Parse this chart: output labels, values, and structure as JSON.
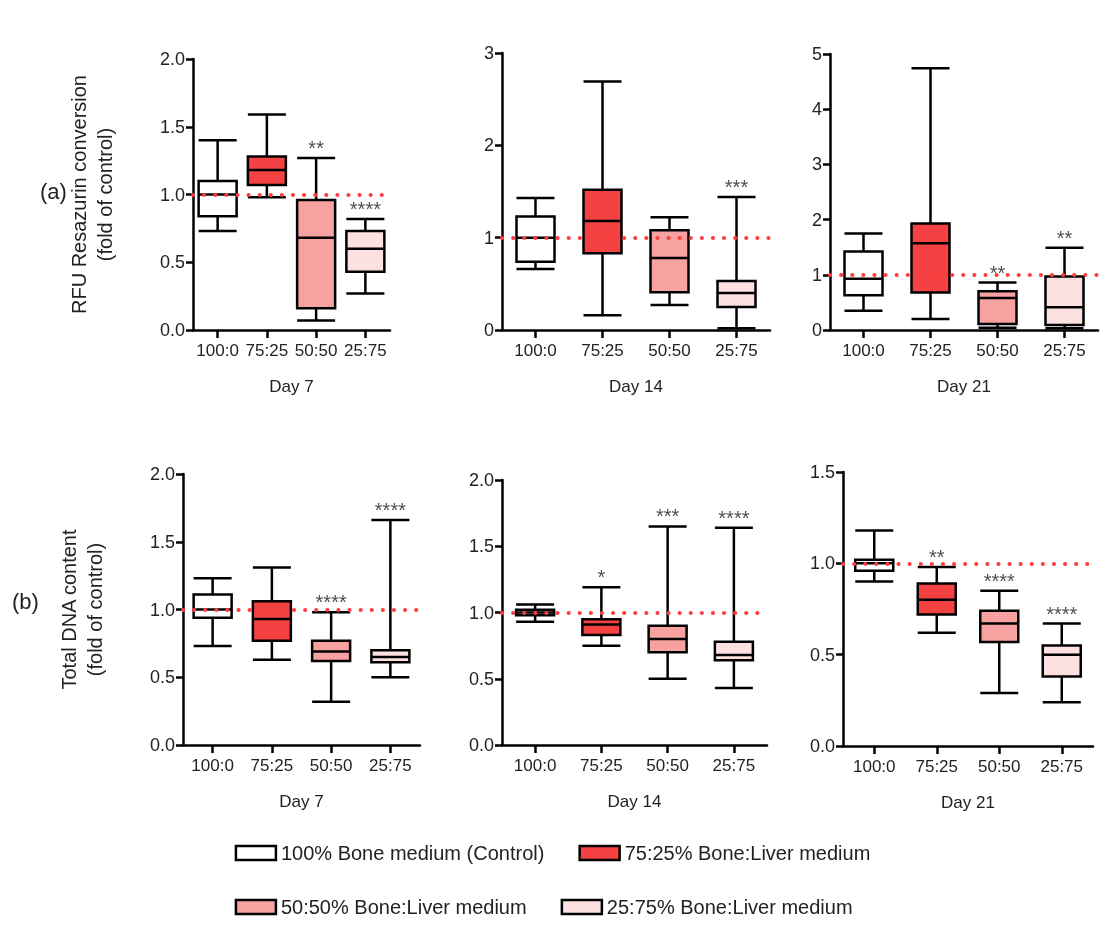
{
  "chart_data": [
    {
      "type": "box",
      "categories": [
        "100:0",
        "75:25",
        "50:50",
        "25:75"
      ],
      "xlabel": "Day 7",
      "ylabel": "RFU Resazurin conversion\n(fold of control)",
      "ylim": [
        0,
        2
      ],
      "yticks": [
        {
          "value": 0,
          "label": "0.0"
        },
        0.5,
        {
          "value": 1,
          "label": "1.0"
        },
        1.5,
        {
          "value": 2,
          "label": "2.0"
        }
      ],
      "series": [
        {
          "color": "#ffffff",
          "boxes": [
            {
              "low": 0.73,
              "q1": 0.84,
              "median": 1.0,
              "q3": 1.1,
              "high": 1.4
            },
            null,
            null,
            null
          ]
        },
        {
          "color": "#f44141",
          "boxes": [
            null,
            {
              "low": 0.98,
              "q1": 1.07,
              "median": 1.18,
              "q3": 1.28,
              "high": 1.59
            },
            null,
            null
          ]
        },
        {
          "color": "#f7a1a1",
          "boxes": [
            null,
            null,
            {
              "low": 0.07,
              "q1": 0.16,
              "median": 0.68,
              "q3": 0.96,
              "high": 1.27
            },
            null
          ]
        },
        {
          "color": "#fde0e0",
          "boxes": [
            null,
            null,
            null,
            {
              "low": 0.27,
              "q1": 0.43,
              "median": 0.6,
              "q3": 0.73,
              "high": 0.82
            }
          ]
        }
      ],
      "ref_lines": [
        {
          "axis": "y",
          "value": 1,
          "color": "#ff3b3b",
          "line_style": "dotted"
        }
      ],
      "annotations": [
        "(a)",
        {
          "text": "**",
          "x": "50:50",
          "y": 1.27
        },
        {
          "text": "****",
          "x": "25:75",
          "y": 0.82
        }
      ]
    },
    {
      "type": "box",
      "categories": [
        "100:0",
        "75:25",
        "50:50",
        "25:75"
      ],
      "xlabel": "Day 14",
      "ylim": [
        0,
        3
      ],
      "yticks": [
        0,
        1,
        2,
        3
      ],
      "series": [
        {
          "color": "#ffffff",
          "boxes": [
            {
              "low": 0.66,
              "q1": 0.74,
              "median": 1.0,
              "q3": 1.23,
              "high": 1.43
            },
            null,
            null,
            null
          ]
        },
        {
          "color": "#f44141",
          "boxes": [
            null,
            {
              "low": 0.16,
              "q1": 0.83,
              "median": 1.18,
              "q3": 1.52,
              "high": 2.69
            },
            null,
            null
          ]
        },
        {
          "color": "#f7a1a1",
          "boxes": [
            null,
            null,
            {
              "low": 0.27,
              "q1": 0.41,
              "median": 0.78,
              "q3": 1.08,
              "high": 1.22
            },
            null
          ]
        },
        {
          "color": "#fde0e0",
          "boxes": [
            null,
            null,
            null,
            {
              "low": 0.02,
              "q1": 0.25,
              "median": 0.4,
              "q3": 0.53,
              "high": 1.44
            }
          ]
        }
      ],
      "ref_lines": [
        {
          "axis": "y",
          "value": 1,
          "color": "#ff3b3b",
          "line_style": "dotted"
        }
      ],
      "annotations": [
        {
          "text": "***",
          "x": "25:75",
          "y": 1.44
        }
      ]
    },
    {
      "type": "box",
      "categories": [
        "100:0",
        "75:25",
        "50:50",
        "25:75"
      ],
      "xlabel": "Day 21",
      "ylim": [
        0,
        5
      ],
      "yticks": [
        0,
        1,
        2,
        3,
        4,
        5
      ],
      "series": [
        {
          "color": "#ffffff",
          "boxes": [
            {
              "low": 0.35,
              "q1": 0.63,
              "median": 0.93,
              "q3": 1.42,
              "high": 1.75
            },
            null,
            null,
            null
          ]
        },
        {
          "color": "#f44141",
          "boxes": [
            null,
            {
              "low": 0.2,
              "q1": 0.68,
              "median": 1.57,
              "q3": 1.93,
              "high": 4.74
            },
            null,
            null
          ]
        },
        {
          "color": "#f7a1a1",
          "boxes": [
            null,
            null,
            {
              "low": 0.04,
              "q1": 0.11,
              "median": 0.58,
              "q3": 0.7,
              "high": 0.86
            },
            null
          ]
        },
        {
          "color": "#fde0e0",
          "boxes": [
            null,
            null,
            null,
            {
              "low": 0.03,
              "q1": 0.09,
              "median": 0.41,
              "q3": 0.97,
              "high": 1.49
            }
          ]
        }
      ],
      "ref_lines": [
        {
          "axis": "y",
          "value": 1,
          "color": "#ff3b3b",
          "line_style": "dotted"
        }
      ],
      "annotations": [
        {
          "text": "**",
          "x": "50:50",
          "y": 0.86
        },
        {
          "text": "**",
          "x": "25:75",
          "y": 1.49
        }
      ]
    },
    {
      "type": "box",
      "categories": [
        "100:0",
        "75:25",
        "50:50",
        "25:75"
      ],
      "xlabel": "Day 7",
      "ylabel": "Total DNA content\n(fold of control)",
      "ylim": [
        0,
        2
      ],
      "yticks": [
        {
          "value": 0,
          "label": "0.0"
        },
        0.5,
        {
          "value": 1,
          "label": "1.0"
        },
        1.5,
        {
          "value": 2,
          "label": "2.0"
        }
      ],
      "series": [
        {
          "color": "#ffffff",
          "boxes": [
            {
              "low": 0.73,
              "q1": 0.94,
              "median": 1.0,
              "q3": 1.11,
              "high": 1.23
            },
            null,
            null,
            null
          ]
        },
        {
          "color": "#f44141",
          "boxes": [
            null,
            {
              "low": 0.63,
              "q1": 0.77,
              "median": 0.93,
              "q3": 1.06,
              "high": 1.31
            },
            null,
            null
          ]
        },
        {
          "color": "#f7a1a1",
          "boxes": [
            null,
            null,
            {
              "low": 0.32,
              "q1": 0.62,
              "median": 0.69,
              "q3": 0.77,
              "high": 0.98
            },
            null
          ]
        },
        {
          "color": "#fde0e0",
          "boxes": [
            null,
            null,
            null,
            {
              "low": 0.5,
              "q1": 0.61,
              "median": 0.65,
              "q3": 0.7,
              "high": 1.66
            }
          ]
        }
      ],
      "ref_lines": [
        {
          "axis": "y",
          "value": 1,
          "color": "#ff3b3b",
          "line_style": "dotted"
        }
      ],
      "annotations": [
        "(b)",
        {
          "text": "****",
          "x": "50:50",
          "y": 0.98
        },
        {
          "text": "****",
          "x": "25:75",
          "y": 1.66
        }
      ]
    },
    {
      "type": "box",
      "categories": [
        "100:0",
        "75:25",
        "50:50",
        "25:75"
      ],
      "xlabel": "Day 14",
      "ylim": [
        0,
        2
      ],
      "yticks": [
        {
          "value": 0,
          "label": "0.0"
        },
        0.5,
        {
          "value": 1,
          "label": "1.0"
        },
        1.5,
        {
          "value": 2,
          "label": "2.0"
        }
      ],
      "legend": "bottom",
      "series": [
        {
          "name": "100% Bone medium (Control)",
          "color": "#ffffff",
          "boxes": [
            {
              "low": 0.93,
              "q1": 0.98,
              "median": 1.0,
              "q3": 1.02,
              "high": 1.06
            },
            null,
            null,
            null
          ]
        },
        {
          "name": "75:25% Bone:Liver medium",
          "color": "#f44141",
          "boxes": [
            null,
            {
              "low": 0.75,
              "q1": 0.83,
              "median": 0.91,
              "q3": 0.95,
              "high": 1.19
            },
            null,
            null
          ]
        },
        {
          "name": "50:50% Bone:Liver medium",
          "color": "#f7a1a1",
          "boxes": [
            null,
            null,
            {
              "low": 0.5,
              "q1": 0.7,
              "median": 0.8,
              "q3": 0.9,
              "high": 1.65
            },
            null
          ]
        },
        {
          "name": "25:75% Bone:Liver medium",
          "color": "#fde0e0",
          "boxes": [
            null,
            null,
            null,
            {
              "low": 0.43,
              "q1": 0.64,
              "median": 0.68,
              "q3": 0.78,
              "high": 1.64
            }
          ]
        }
      ],
      "ref_lines": [
        {
          "axis": "y",
          "value": 1,
          "color": "#ff3b3b",
          "line_style": "dotted"
        }
      ],
      "annotations": [
        {
          "text": "*",
          "x": "75:25",
          "y": 1.19
        },
        {
          "text": "***",
          "x": "50:50",
          "y": 1.65
        },
        {
          "text": "****",
          "x": "25:75",
          "y": 1.64
        }
      ]
    },
    {
      "type": "box",
      "categories": [
        "100:0",
        "75:25",
        "50:50",
        "25:75"
      ],
      "xlabel": "Day 21",
      "ylim": [
        0,
        1.5
      ],
      "yticks": [
        {
          "value": 0,
          "label": "0.0"
        },
        0.5,
        {
          "value": 1,
          "label": "1.0"
        },
        1.5
      ],
      "series": [
        {
          "color": "#ffffff",
          "boxes": [
            {
              "low": 0.9,
              "q1": 0.96,
              "median": 1.0,
              "q3": 1.02,
              "high": 1.18
            },
            null,
            null,
            null
          ]
        },
        {
          "color": "#f44141",
          "boxes": [
            null,
            {
              "low": 0.62,
              "q1": 0.72,
              "median": 0.8,
              "q3": 0.89,
              "high": 0.98
            },
            null,
            null
          ]
        },
        {
          "color": "#f7a1a1",
          "boxes": [
            null,
            null,
            {
              "low": 0.29,
              "q1": 0.57,
              "median": 0.67,
              "q3": 0.74,
              "high": 0.85
            },
            null
          ]
        },
        {
          "color": "#fde0e0",
          "boxes": [
            null,
            null,
            null,
            {
              "low": 0.24,
              "q1": 0.38,
              "median": 0.5,
              "q3": 0.55,
              "high": 0.67
            }
          ]
        }
      ],
      "ref_lines": [
        {
          "axis": "y",
          "value": 1,
          "color": "#ff3b3b",
          "line_style": "dotted"
        }
      ],
      "annotations": [
        {
          "text": "**",
          "x": "75:25",
          "y": 0.98
        },
        {
          "text": "****",
          "x": "50:50",
          "y": 0.85
        },
        {
          "text": "****",
          "x": "25:75",
          "y": 0.67
        }
      ]
    }
  ]
}
